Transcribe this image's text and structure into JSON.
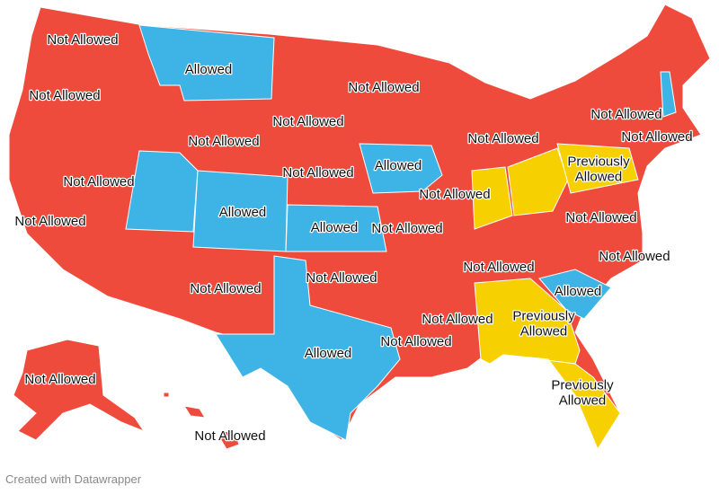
{
  "colors": {
    "allowed": "#3db4e5",
    "not_allowed": "#ef4b3c",
    "previously_allowed": "#f6d000"
  },
  "labels": [
    {
      "lines": [
        "Not Allowed"
      ],
      "status": "not_allowed"
    },
    {
      "lines": [
        "Allowed"
      ],
      "status": "allowed"
    },
    {
      "lines": [
        "Not Allowed"
      ],
      "status": "not_allowed"
    },
    {
      "lines": [
        "Not Allowed"
      ],
      "status": "not_allowed"
    },
    {
      "lines": [
        "Not Allowed"
      ],
      "status": "not_allowed"
    },
    {
      "lines": [
        "Not Allowed"
      ],
      "status": "not_allowed"
    },
    {
      "lines": [
        "Not Allowed"
      ],
      "status": "not_allowed"
    },
    {
      "lines": [
        "Allowed"
      ],
      "status": "allowed"
    },
    {
      "lines": [
        "Not Allowed"
      ],
      "status": "not_allowed"
    },
    {
      "lines": [
        "Allowed"
      ],
      "status": "allowed"
    },
    {
      "lines": [
        "Allowed"
      ],
      "status": "allowed"
    },
    {
      "lines": [
        "Not Allowed"
      ],
      "status": "not_allowed"
    },
    {
      "lines": [
        "Not Allowed"
      ],
      "status": "not_allowed"
    },
    {
      "lines": [
        "Not Allowed"
      ],
      "status": "not_allowed"
    },
    {
      "lines": [
        "Not Allowed"
      ],
      "status": "not_allowed"
    },
    {
      "lines": [
        "Not Allowed"
      ],
      "status": "not_allowed"
    },
    {
      "lines": [
        "Not Allowed"
      ],
      "status": "not_allowed"
    },
    {
      "lines": [
        "Previously",
        "Allowed"
      ],
      "status": "previously_allowed"
    },
    {
      "lines": [
        "Not Allowed"
      ],
      "status": "not_allowed"
    },
    {
      "lines": [
        "Not Allowed"
      ],
      "status": "not_allowed"
    },
    {
      "lines": [
        "Not Allowed"
      ],
      "status": "not_allowed"
    },
    {
      "lines": [
        "Not Allowed"
      ],
      "status": "not_allowed"
    },
    {
      "lines": [
        "Allowed"
      ],
      "status": "allowed"
    },
    {
      "lines": [
        "Not Allowed"
      ],
      "status": "not_allowed"
    },
    {
      "lines": [
        "Not Allowed"
      ],
      "status": "not_allowed"
    },
    {
      "lines": [
        "Previously",
        "Allowed"
      ],
      "status": "previously_allowed"
    },
    {
      "lines": [
        "Not Allowed"
      ],
      "status": "not_allowed"
    },
    {
      "lines": [
        "Allowed"
      ],
      "status": "allowed"
    },
    {
      "lines": [
        "Not Allowed"
      ],
      "status": "not_allowed"
    },
    {
      "lines": [
        "Previously",
        "Allowed"
      ],
      "status": "previously_allowed"
    },
    {
      "lines": [
        "Not Allowed"
      ],
      "status": "not_allowed"
    }
  ],
  "footer": "Created with Datawrapper"
}
